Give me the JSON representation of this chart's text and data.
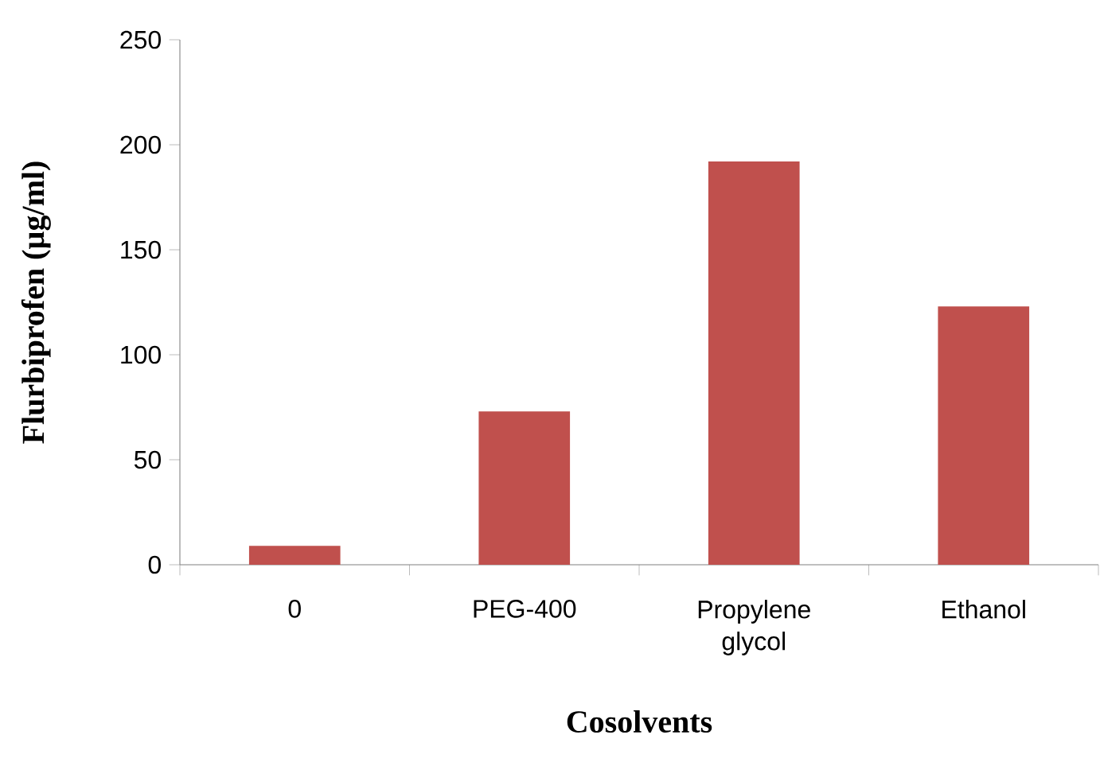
{
  "chart_data": {
    "type": "bar",
    "xlabel": "Cosolvents",
    "ylabel": "Flurbiprofen (µg/ml)",
    "categories": [
      "0",
      "PEG-400",
      "Propylene glycol",
      "Ethanol"
    ],
    "values": [
      9,
      73,
      192,
      123
    ],
    "color": "#c0504d",
    "ylim": [
      0,
      250
    ],
    "yticks": [
      0,
      50,
      100,
      150,
      200,
      250
    ],
    "grid": false
  }
}
